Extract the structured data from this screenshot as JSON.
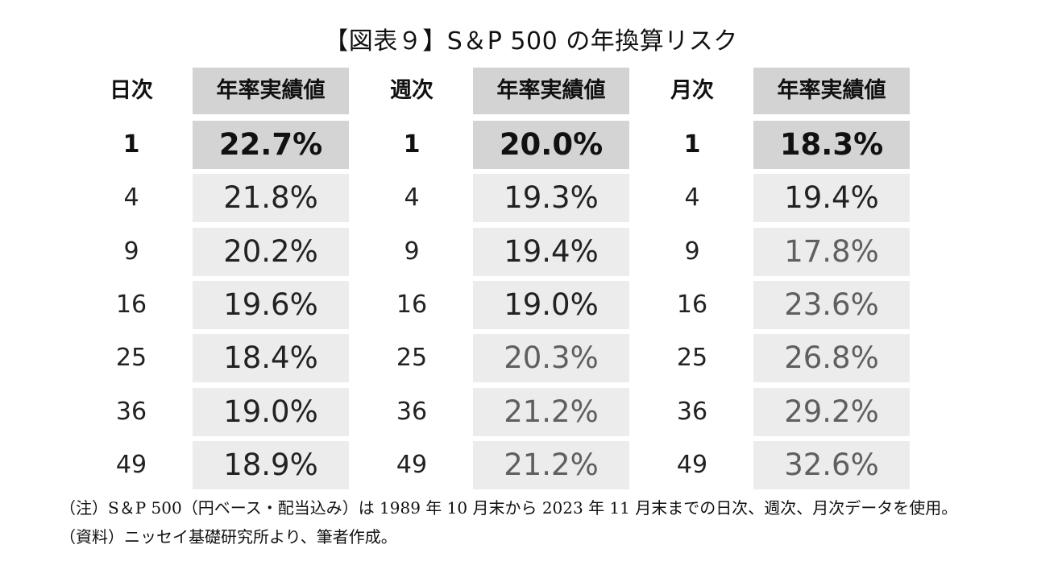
{
  "title": "【図表９】S＆P 500 の年換算リスク",
  "chart_data": {
    "type": "table",
    "title": "【図表９】S＆P 500 の年換算リスク",
    "groups": [
      {
        "period_label": "日次",
        "value_header": "年率実績値",
        "rows": [
          {
            "n": "1",
            "value": "22.7%"
          },
          {
            "n": "4",
            "value": "21.8%"
          },
          {
            "n": "9",
            "value": "20.2%"
          },
          {
            "n": "16",
            "value": "19.6%"
          },
          {
            "n": "25",
            "value": "18.4%"
          },
          {
            "n": "36",
            "value": "19.0%"
          },
          {
            "n": "49",
            "value": "18.9%"
          }
        ]
      },
      {
        "period_label": "週次",
        "value_header": "年率実績値",
        "rows": [
          {
            "n": "1",
            "value": "20.0%"
          },
          {
            "n": "4",
            "value": "19.3%"
          },
          {
            "n": "9",
            "value": "19.4%"
          },
          {
            "n": "16",
            "value": "19.0%"
          },
          {
            "n": "25",
            "value": "20.3%"
          },
          {
            "n": "36",
            "value": "21.2%"
          },
          {
            "n": "49",
            "value": "21.2%"
          }
        ]
      },
      {
        "period_label": "月次",
        "value_header": "年率実績値",
        "rows": [
          {
            "n": "1",
            "value": "18.3%"
          },
          {
            "n": "4",
            "value": "19.4%"
          },
          {
            "n": "9",
            "value": "17.8%"
          },
          {
            "n": "16",
            "value": "23.6%"
          },
          {
            "n": "25",
            "value": "26.8%"
          },
          {
            "n": "36",
            "value": "29.2%"
          },
          {
            "n": "49",
            "value": "32.6%"
          }
        ]
      }
    ]
  },
  "notes": {
    "note": "（注）S＆P 500（円ベース・配当込み）は 1989 年 10 月末から 2023 年 11 月末までの日次、週次、月次データを使用。",
    "source": "（資料）ニッセイ基礎研究所より、筆者作成。"
  }
}
